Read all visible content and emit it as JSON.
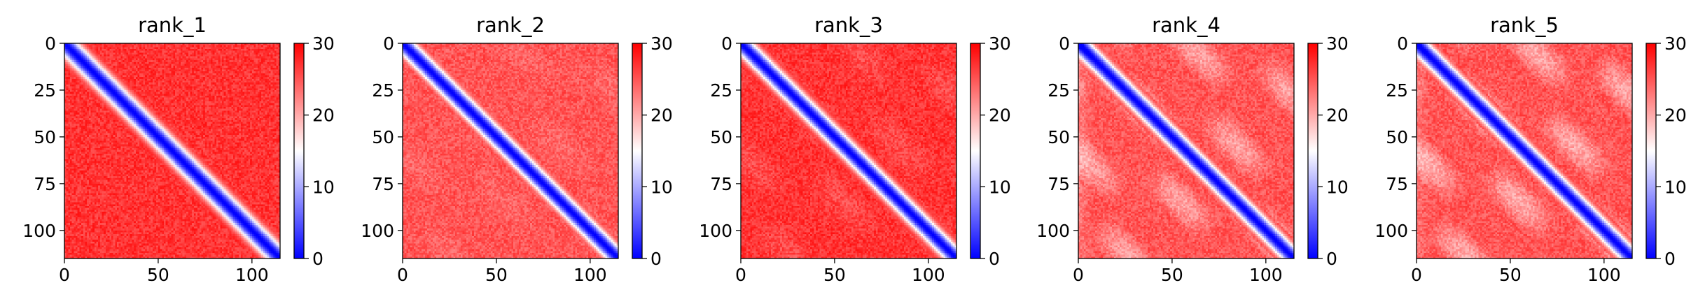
{
  "chart_data": [
    {
      "type": "heatmap",
      "title": "rank_1",
      "xlim": [
        0,
        115
      ],
      "ylim": [
        115,
        0
      ],
      "x_ticks": [
        0,
        50,
        100
      ],
      "y_ticks": [
        0,
        25,
        50,
        75,
        100
      ],
      "colorbar": {
        "min": 0,
        "max": 30,
        "ticks": [
          0,
          10,
          20,
          30
        ],
        "colormap": [
          "#0000ff",
          "#ffffff",
          "#ff0000"
        ]
      },
      "pattern": {
        "diagonal_width": 5.5,
        "background_level": 27,
        "stripe_strength": 0,
        "left_edge": 0
      }
    },
    {
      "type": "heatmap",
      "title": "rank_2",
      "xlim": [
        0,
        115
      ],
      "ylim": [
        115,
        0
      ],
      "x_ticks": [
        0,
        50,
        100
      ],
      "y_ticks": [
        0,
        25,
        50,
        75,
        100
      ],
      "colorbar": {
        "min": 0,
        "max": 30,
        "ticks": [
          0,
          10,
          20,
          30
        ],
        "colormap": [
          "#0000ff",
          "#ffffff",
          "#ff0000"
        ]
      },
      "pattern": {
        "diagonal_width": 5.0,
        "background_level": 25,
        "stripe_strength": 0.1,
        "left_edge": 0
      }
    },
    {
      "type": "heatmap",
      "title": "rank_3",
      "xlim": [
        0,
        115
      ],
      "ylim": [
        115,
        0
      ],
      "x_ticks": [
        0,
        50,
        100
      ],
      "y_ticks": [
        0,
        25,
        50,
        75,
        100
      ],
      "colorbar": {
        "min": 0,
        "max": 30,
        "ticks": [
          0,
          10,
          20,
          30
        ],
        "colormap": [
          "#0000ff",
          "#ffffff",
          "#ff0000"
        ]
      },
      "pattern": {
        "diagonal_width": 5.0,
        "background_level": 27,
        "stripe_strength": 0.15,
        "left_edge": 0
      }
    },
    {
      "type": "heatmap",
      "title": "rank_4",
      "xlim": [
        0,
        115
      ],
      "ylim": [
        115,
        0
      ],
      "x_ticks": [
        0,
        50,
        100
      ],
      "y_ticks": [
        0,
        25,
        50,
        75,
        100
      ],
      "colorbar": {
        "min": 0,
        "max": 30,
        "ticks": [
          0,
          10,
          20,
          30
        ],
        "colormap": [
          "#0000ff",
          "#ffffff",
          "#ff0000"
        ]
      },
      "pattern": {
        "diagonal_width": 5.0,
        "background_level": 25,
        "stripe_strength": 0.45,
        "left_edge": 0.2
      }
    },
    {
      "type": "heatmap",
      "title": "rank_5",
      "xlim": [
        0,
        115
      ],
      "ylim": [
        115,
        0
      ],
      "x_ticks": [
        0,
        50,
        100
      ],
      "y_ticks": [
        0,
        25,
        50,
        75,
        100
      ],
      "colorbar": {
        "min": 0,
        "max": 30,
        "ticks": [
          0,
          10,
          20,
          30
        ],
        "colormap": [
          "#0000ff",
          "#ffffff",
          "#ff0000"
        ]
      },
      "pattern": {
        "diagonal_width": 5.0,
        "background_level": 25,
        "stripe_strength": 0.5,
        "left_edge": 0.15
      }
    }
  ]
}
